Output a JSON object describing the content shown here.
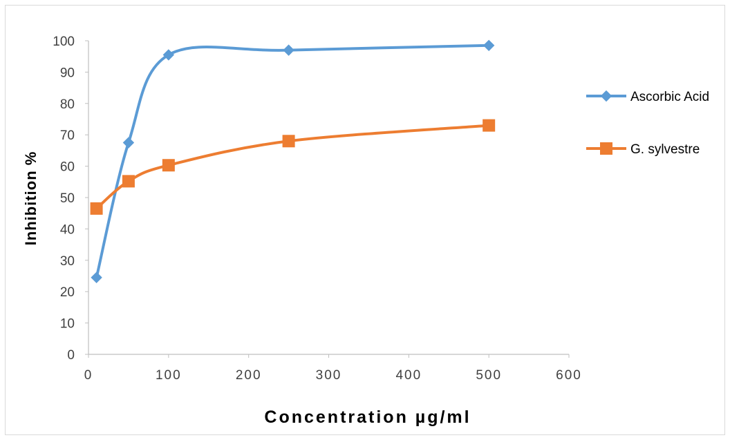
{
  "chart_data": {
    "type": "line",
    "title": "",
    "xlabel": "Concentration µg/ml",
    "ylabel": "Inhibition %",
    "xlim": [
      0,
      600
    ],
    "ylim": [
      0,
      100
    ],
    "x_ticks": [
      "0",
      "100",
      "200",
      "300",
      "400",
      "500",
      "600"
    ],
    "y_ticks": [
      "0",
      "10",
      "20",
      "30",
      "40",
      "50",
      "60",
      "70",
      "80",
      "90",
      "100"
    ],
    "grid": false,
    "smooth": true,
    "legend_position": "right",
    "series": [
      {
        "name": "Ascorbic Acid",
        "color": "#5b9bd5",
        "marker": "diamond",
        "x": [
          10,
          50,
          100,
          250,
          500
        ],
        "y": [
          24.5,
          67.5,
          95.5,
          97,
          98.5
        ]
      },
      {
        "name": "G. sylvestre",
        "color": "#ed7d31",
        "marker": "square",
        "x": [
          10,
          50,
          100,
          250,
          500
        ],
        "y": [
          46.5,
          55.2,
          60.3,
          68,
          73
        ]
      }
    ]
  }
}
